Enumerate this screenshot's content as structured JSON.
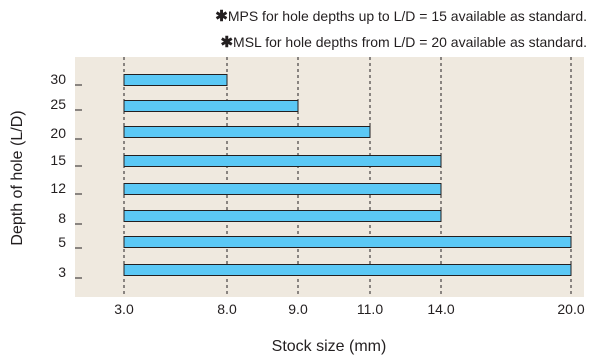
{
  "notes": [
    {
      "marker": "✱",
      "text": "MPS for hole depths up to L/D = 15 available as standard."
    },
    {
      "marker": "✱",
      "text": "MSL for hole depths from L/D = 20 available as standard."
    }
  ],
  "colors": {
    "plot_background": "#efe9df",
    "bar_fill": "#5bc8f5",
    "bar_stroke": "#231f20",
    "grid": "#231f20"
  },
  "chart_data": {
    "type": "bar",
    "orientation": "horizontal",
    "xlabel": "Stock size (mm)",
    "ylabel": "Depth of hole (L/D)",
    "x_ticks": [
      "3.0",
      "8.0",
      "9.0",
      "11.0",
      "14.0",
      "20.0"
    ],
    "x_tick_values": [
      3,
      8,
      9,
      11,
      14,
      20
    ],
    "xlim": [
      3,
      20
    ],
    "categories": [
      "30",
      "25",
      "20",
      "15",
      "12",
      "8",
      "5",
      "3"
    ],
    "bar_start": 3,
    "values": [
      8,
      9,
      11,
      14,
      14,
      14,
      20,
      20
    ],
    "grid": "vertical dashed at ticks",
    "legend": "none"
  }
}
